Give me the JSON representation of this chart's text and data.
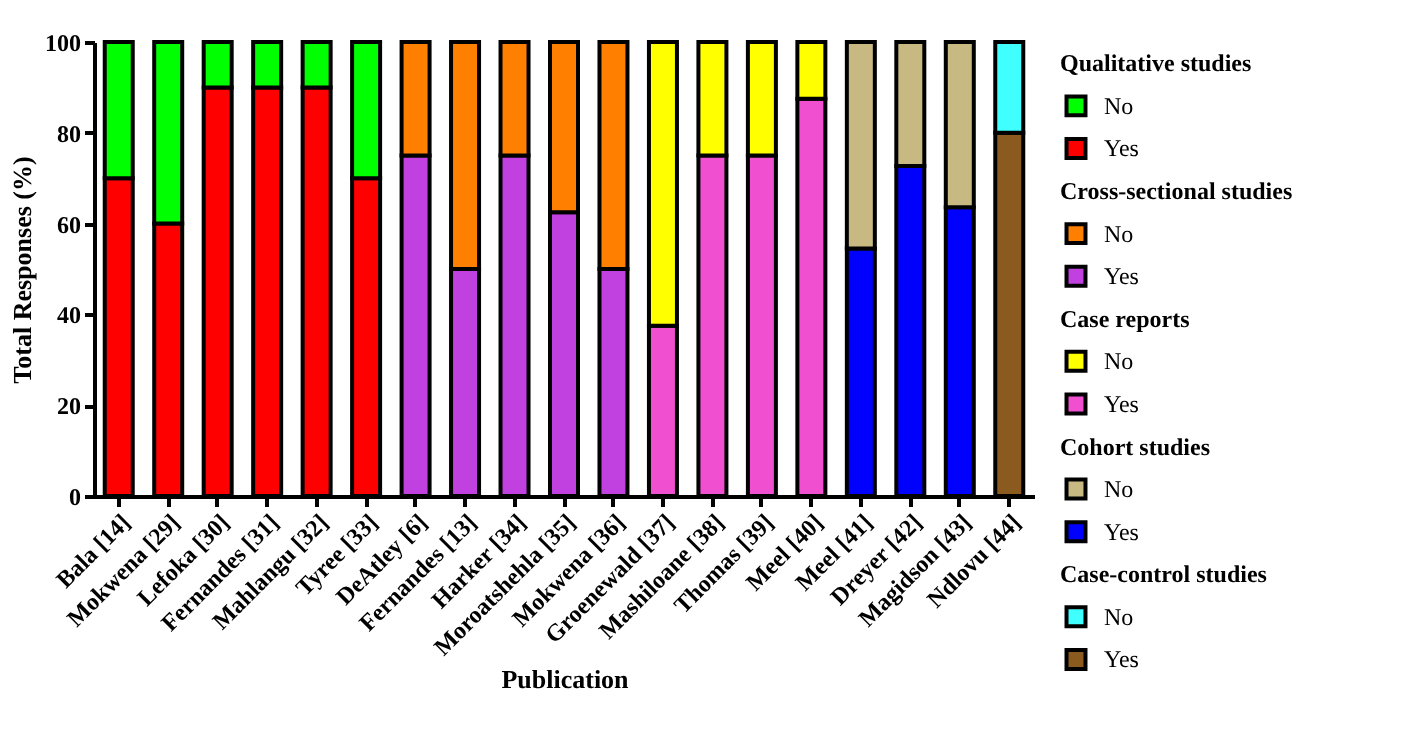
{
  "chart_data": {
    "type": "bar",
    "stacked": true,
    "xlabel": "Publication",
    "ylabel": "Total Responses (%)",
    "categories": [
      "Bala [14]",
      "Mokwena [29]",
      "Lefoka [30]",
      "Fernandes [31]",
      "Mahlangu [32]",
      "Tyree [33]",
      "DeAtley [6]",
      "Fernandes [13]",
      "Harker [34]",
      "Moroatshehla [35]",
      "Mokwena [36]",
      "Groenewald [37]",
      "Mashiloane [38]",
      "Thomas [39]",
      "Meel [40]",
      "Meel [41]",
      "Dreyer [42]",
      "Magidson [43]",
      "Ndlovu [44]"
    ],
    "ylim": [
      0,
      100
    ],
    "yticks": [
      0,
      20,
      40,
      60,
      80,
      100
    ],
    "grid": false,
    "legend": "right",
    "annotations": [
      "Qualitative studies",
      "Cross-sectional studies",
      "Case reports",
      "Cohort studies",
      "Case-control studies"
    ],
    "series": [
      {
        "name": "Yes",
        "color": "#ff0000",
        "values": [
          70,
          60,
          90,
          90,
          90,
          70,
          null,
          null,
          null,
          null,
          null,
          null,
          null,
          null,
          null,
          null,
          null,
          null,
          null
        ]
      },
      {
        "name": "No",
        "color": "#00ff00",
        "values": [
          30,
          40,
          10,
          10,
          10,
          30,
          null,
          null,
          null,
          null,
          null,
          null,
          null,
          null,
          null,
          null,
          null,
          null,
          null
        ]
      },
      {
        "name": "Yes",
        "color": "#c040e0",
        "values": [
          null,
          null,
          null,
          null,
          null,
          null,
          75,
          50,
          75,
          62.5,
          50,
          null,
          null,
          null,
          null,
          null,
          null,
          null,
          null
        ]
      },
      {
        "name": "No",
        "color": "#ff8000",
        "values": [
          null,
          null,
          null,
          null,
          null,
          null,
          25,
          50,
          25,
          37.5,
          50,
          null,
          null,
          null,
          null,
          null,
          null,
          null,
          null
        ]
      },
      {
        "name": "Yes",
        "color": "#f050d0",
        "values": [
          null,
          null,
          null,
          null,
          null,
          null,
          null,
          null,
          null,
          null,
          null,
          37.5,
          75,
          75,
          87.5,
          null,
          null,
          null,
          null
        ]
      },
      {
        "name": "No",
        "color": "#ffff00",
        "values": [
          null,
          null,
          null,
          null,
          null,
          null,
          null,
          null,
          null,
          null,
          null,
          62.5,
          25,
          25,
          12.5,
          null,
          null,
          null,
          null
        ]
      },
      {
        "name": "Yes",
        "color": "#0000ff",
        "values": [
          null,
          null,
          null,
          null,
          null,
          null,
          null,
          null,
          null,
          null,
          null,
          null,
          null,
          null,
          null,
          54.5,
          72.7,
          63.6,
          null
        ]
      },
      {
        "name": "No",
        "color": "#c8b882",
        "values": [
          null,
          null,
          null,
          null,
          null,
          null,
          null,
          null,
          null,
          null,
          null,
          null,
          null,
          null,
          null,
          45.5,
          27.3,
          36.4,
          null
        ]
      },
      {
        "name": "Yes",
        "color": "#8b5a1e",
        "values": [
          null,
          null,
          null,
          null,
          null,
          null,
          null,
          null,
          null,
          null,
          null,
          null,
          null,
          null,
          null,
          null,
          null,
          null,
          80
        ]
      },
      {
        "name": "No",
        "color": "#40ffff",
        "values": [
          null,
          null,
          null,
          null,
          null,
          null,
          null,
          null,
          null,
          null,
          null,
          null,
          null,
          null,
          null,
          null,
          null,
          null,
          20
        ]
      }
    ]
  }
}
